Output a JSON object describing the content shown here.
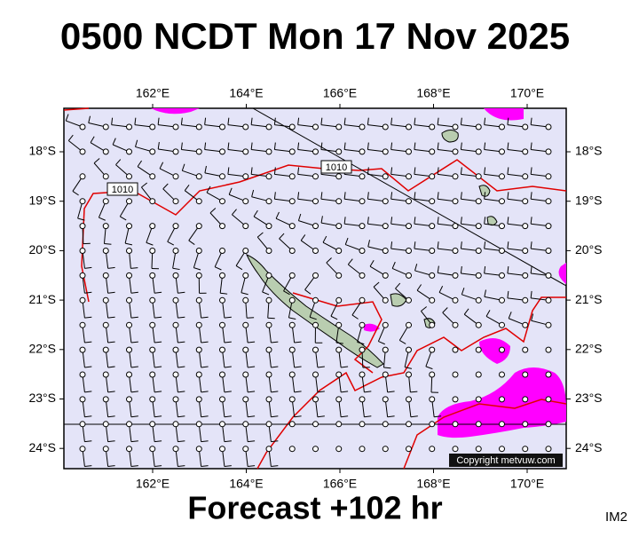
{
  "title": "0500 NCDT Mon 17 Nov 2025",
  "lon_labels": [
    "162°E",
    "164°E",
    "166°E",
    "168°E",
    "170°E"
  ],
  "lat_labels": [
    "18°S",
    "19°S",
    "20°S",
    "21°S",
    "22°S",
    "23°S",
    "24°S"
  ],
  "isobar_labels": [
    "1010",
    "1010"
  ],
  "copyright": "Copyright metvuw.com",
  "footer": "Forecast +102 hr",
  "image_id": "IM2"
}
